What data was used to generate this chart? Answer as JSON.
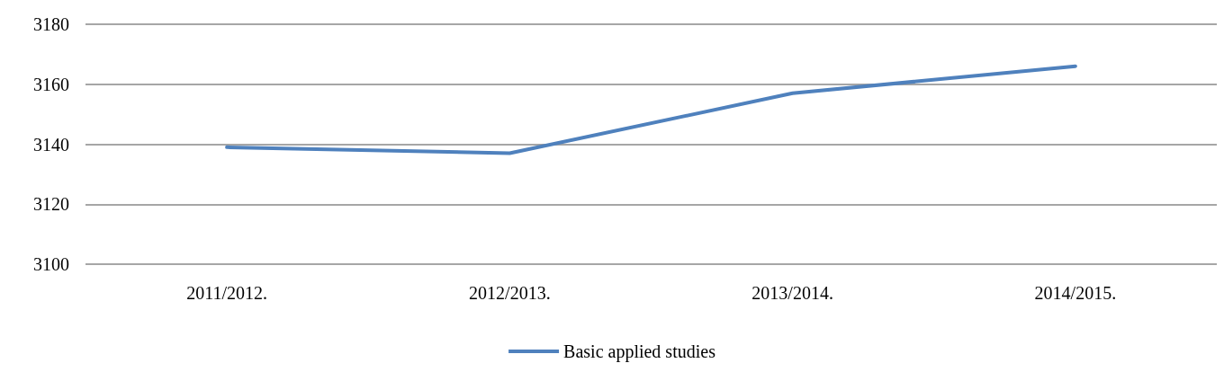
{
  "chart_data": {
    "type": "line",
    "categories": [
      "2011/2012.",
      "2012/2013.",
      "2013/2014.",
      "2014/2015."
    ],
    "series": [
      {
        "name": "Basic applied studies",
        "color": "#4f81bd",
        "values": [
          3139,
          3137,
          3157,
          3166
        ]
      }
    ],
    "ylim": [
      3100,
      3180
    ],
    "yticks": [
      3100,
      3120,
      3140,
      3160,
      3180
    ],
    "grid": "y",
    "legend": "bottom",
    "marker": "none",
    "line_style": "solid"
  }
}
